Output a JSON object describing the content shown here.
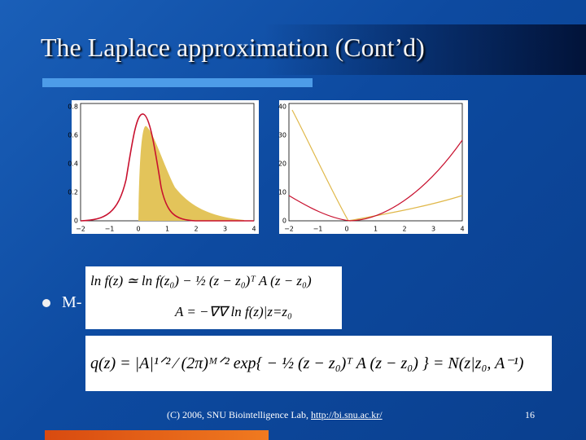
{
  "header": {
    "title": "The Laplace approximation (Cont’d)"
  },
  "figures": [
    {
      "yticks": [
        "0.8",
        "0.6",
        "0.4",
        "0.2",
        "0"
      ],
      "xticks": [
        "−2",
        "−1",
        "0",
        "1",
        "2",
        "3",
        "4"
      ]
    },
    {
      "yticks": [
        "40",
        "30",
        "20",
        "10",
        "0"
      ],
      "xticks": [
        "−2",
        "−1",
        "0",
        "1",
        "2",
        "3",
        "4"
      ]
    }
  ],
  "bullet": "M-",
  "equations": [
    "ln f(z) ≃ ln f(z₀) − ½ (z − z₀)ᵀ A (z − z₀)",
    "A = −∇∇ ln f(z)|z=z₀",
    "q(z) = |A|¹ᐟ² ⁄ (2π)ᴹᐟ² exp{ − ½ (z − z₀)ᵀ A (z − z₀) } = N(z|z₀, A⁻¹)"
  ],
  "footer": {
    "credit": "(C) 2006, SNU Biointelligence Lab, ",
    "link": "http://bi.snu.ac.kr/",
    "page": "16"
  }
}
